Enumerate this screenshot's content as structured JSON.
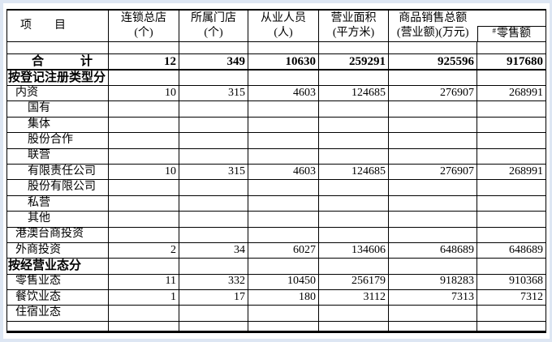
{
  "colors": {
    "page_bg": "#dde6f3",
    "sheet_bg": "#ffffff",
    "grid_line": "#000000",
    "text": "#000000"
  },
  "table": {
    "header": {
      "item": "项　　目",
      "cols": [
        {
          "line1": "连锁总店",
          "line2": "(个)"
        },
        {
          "line1": "所属门店",
          "line2": "(个)"
        },
        {
          "line1": "从业人员",
          "line2": "(人)"
        },
        {
          "line1": "营业面积",
          "line2": "(平方米)"
        },
        {
          "line1": "商品销售总额",
          "line2": "(营业额)(万元)"
        }
      ],
      "retail_mark": "#",
      "retail_label": "零售额"
    },
    "rows": [
      {
        "style": "spacer",
        "label": "",
        "values": [
          "",
          "",
          "",
          "",
          "",
          ""
        ]
      },
      {
        "style": "total",
        "label": "合　　　计",
        "values": [
          "12",
          "349",
          "10630",
          "259291",
          "925596",
          "917680"
        ]
      },
      {
        "style": "section",
        "label": "按登记注册类型分",
        "values": [
          "",
          "",
          "",
          "",
          "",
          ""
        ]
      },
      {
        "style": "level1",
        "label": "内资",
        "values": [
          "10",
          "315",
          "4603",
          "124685",
          "276907",
          "268991"
        ]
      },
      {
        "style": "level2",
        "label": "国有",
        "values": [
          "",
          "",
          "",
          "",
          "",
          ""
        ]
      },
      {
        "style": "level2",
        "label": "集体",
        "values": [
          "",
          "",
          "",
          "",
          "",
          ""
        ]
      },
      {
        "style": "level2",
        "label": "股份合作",
        "values": [
          "",
          "",
          "",
          "",
          "",
          ""
        ]
      },
      {
        "style": "level2",
        "label": "联营",
        "values": [
          "",
          "",
          "",
          "",
          "",
          ""
        ]
      },
      {
        "style": "level2",
        "label": "有限责任公司",
        "values": [
          "10",
          "315",
          "4603",
          "124685",
          "276907",
          "268991"
        ]
      },
      {
        "style": "level2",
        "label": "股份有限公司",
        "values": [
          "",
          "",
          "",
          "",
          "",
          ""
        ]
      },
      {
        "style": "level2",
        "label": "私营",
        "values": [
          "",
          "",
          "",
          "",
          "",
          ""
        ]
      },
      {
        "style": "level2",
        "label": "其他",
        "values": [
          "",
          "",
          "",
          "",
          "",
          ""
        ]
      },
      {
        "style": "level1",
        "label": "港澳台商投资",
        "values": [
          "",
          "",
          "",
          "",
          "",
          ""
        ]
      },
      {
        "style": "level1",
        "label": "外商投资",
        "values": [
          "2",
          "34",
          "6027",
          "134606",
          "648689",
          "648689"
        ]
      },
      {
        "style": "section",
        "label": "按经营业态分",
        "values": [
          "",
          "",
          "",
          "",
          "",
          ""
        ]
      },
      {
        "style": "level1",
        "label": "零售业态",
        "values": [
          "11",
          "332",
          "10450",
          "256179",
          "918283",
          "910368"
        ]
      },
      {
        "style": "level1",
        "label": "餐饮业态",
        "values": [
          "1",
          "17",
          "180",
          "3112",
          "7313",
          "7312"
        ]
      },
      {
        "style": "level1",
        "label": "住宿业态",
        "values": [
          "",
          "",
          "",
          "",
          "",
          ""
        ]
      },
      {
        "style": "bottom",
        "label": "",
        "values": [
          "",
          "",
          "",
          "",
          "",
          ""
        ]
      }
    ]
  }
}
